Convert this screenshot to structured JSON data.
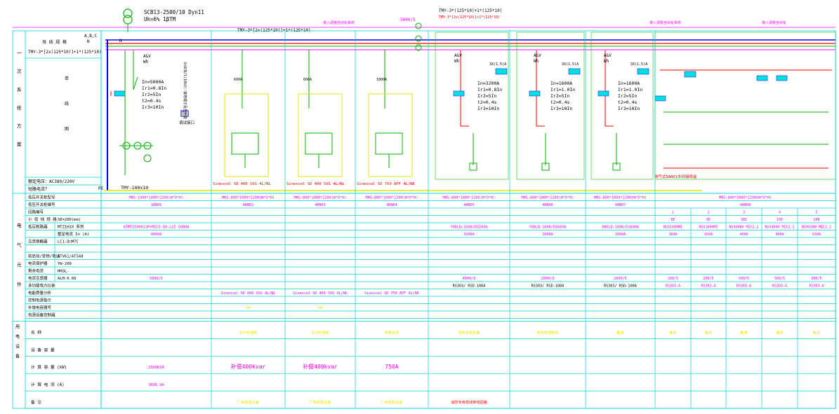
{
  "transformer": {
    "model": "SCB13-2500/10 Dyn11",
    "uk": "Uk=6% 1βTM",
    "main_busbar": "TMY-3*[2x(125*10)]+1*(125*10)",
    "mid_busbar": "TMY-3*[2x(125*10)]+1*(125*10)",
    "pe_bar": "TMY-100x10",
    "top_right_label": "5000/5",
    "top_mid_label": "TMY-3*[2x(125*10)]+1*(125*10)",
    "top_cut_label": "TMY-3*(125*10)+1*(125*10)"
  },
  "bus_phase_labels": {
    "abc": "A,B,C",
    "n": "N",
    "pe": "PE",
    "n2": "N"
  },
  "header_cells": {
    "r1": "一",
    "busbar_label": "母 线 规 格",
    "main_scheme": [
      "次",
      "系",
      "统",
      "方",
      "案"
    ],
    "single_line": [
      "单",
      "线",
      "图"
    ],
    "rated_voltage": "额定电压：AC380/220V",
    "short_circuit": "短路电流？"
  },
  "magenta_notes": {
    "top_left": "接入调度自动化系统",
    "top_right_a": "接入调度自动化系统",
    "top_right_b": "接入调度自动化"
  },
  "trip_settings": {
    "incoming": [
      "In=5000A",
      "Ir1=0.8In",
      "Ir2=5In",
      "t2=0.4s",
      "Ir3=10In"
    ],
    "f5": [
      "In=3200A",
      "Ir1=0.8In",
      "Ir2=5In",
      "t2=0.4s",
      "Ir3=10In"
    ],
    "f6": [
      "In=1600A",
      "Ir1=1.0In",
      "Ir2=5In",
      "t2=0.4s",
      "Ir3=10In"
    ],
    "f7": [
      "In=1600A",
      "Ir1=1.0In",
      "Ir2=5In",
      "t2=0.4s",
      "Ir3=10In"
    ]
  },
  "meters": {
    "label1": "A&V",
    "label2": "Wh",
    "box_label": "3X(1.5)A"
  },
  "schematic_misc": {
    "test_terminal": "T1",
    "test_label": "调试接口",
    "vertical_note": "3×UCN/1(10kV)-接地端子及控制变",
    "rated_a_600a": "600A",
    "rated_a_1000a": "1000A",
    "last_note": "电气式5AN01中间接线盒"
  },
  "compensators": [
    "Sinexcel SD 400 SVG 4L/NL",
    "Sinexcel SD 400 SVG 4L/NL",
    "Sinexcel SD 750 APF 4L/NE"
  ],
  "row_labels": [
    "低压开关柜型号",
    "低压开关柜编号",
    "回路编号",
    "小 母 线 规 格",
    "低压断路器",
    "",
    "交流接触器",
    "",
    "软启动/变频/电话",
    "电流保护器",
    "剩余电流",
    "电流互感器",
    "多功能电力仪表",
    "电能质量分析",
    "控制电源指示",
    "补偿电容器号",
    "电源设备控制器"
  ],
  "row_sub_labels": [
    "",
    "",
    "",
    "SE=200(mm)",
    "MTZ1H3X  系列",
    "整定电流 In (A)",
    "LC1-D□M7C",
    "",
    "ATV61/ATS48",
    "YW-200",
    "HRGL-",
    "ALH-0.66",
    "",
    "",
    "",
    "",
    ""
  ],
  "category_labels": [
    "电",
    "气",
    "元",
    "件"
  ],
  "bottom_side_labels": [
    "用",
    "电",
    "设",
    "备"
  ],
  "bottom_row_labels": [
    "名    称",
    "设 备 容 量",
    "计 算 容 量  (kW)",
    "计 算 电 流  (A)",
    "备   注"
  ],
  "cabinets": [
    {
      "id": "1AN01",
      "model": "MNS-1000*1000*2200(W*D*H)",
      "breaker": "ATMT2500H13P+MIC5.0X-LSI 5000A",
      "setting": "4000A",
      "ct": "5000/5",
      "meter": "",
      "quality": "",
      "ctrl": "",
      "name": "",
      "cap": "2500KVA",
      "current": "3608.9A",
      "remark": ""
    },
    {
      "id": "4AN02",
      "model": "MNS-800*1000*2200(W*D*H)",
      "breaker": "",
      "setting": "",
      "ct": "",
      "meter": "",
      "quality": "Sinexcel SD 400 SVG 4L/NL",
      "ctrl": "6#",
      "name": "无功补偿柜",
      "cap": "补偿400kvar",
      "current": "",
      "remark": "厂家成套设备"
    },
    {
      "id": "4AN03",
      "model": "MNS-800*1000*2200(W*D*H)",
      "breaker": "",
      "setting": "",
      "ct": "",
      "meter": "",
      "quality": "Sinexcel SD 400 SVG 4L/NL",
      "ctrl": "6#",
      "name": "无功补偿柜",
      "cap": "补偿400kvar",
      "current": "",
      "remark": "厂家成套设备"
    },
    {
      "id": "4AN04",
      "model": "MNS-800*1000*2200(W*D*H)",
      "breaker": "",
      "setting": "",
      "ct": "",
      "meter": "",
      "quality": "Sinexcel SD 750 APF 4L/NE",
      "ctrl": "",
      "name": "有源滤波",
      "cap": "750A",
      "current": "",
      "remark": "厂家成套设备"
    },
    {
      "id": "4AN05",
      "model": "MNS-800*1000*2200(W*D*H)",
      "breaker": "YDDLD-3200/D3200A",
      "setting": "3200A",
      "ct": "4000/5",
      "meter": "RS303/ RSD-100A",
      "quality": "",
      "ctrl": "",
      "name": "消防用电设备",
      "cap": "",
      "current": "",
      "remark": "消防专用母线穿线回路"
    },
    {
      "id": "4AN06",
      "model": "MNS-800*1000*2200(W*D*H)",
      "breaker": "YDDLD-1600/D1600A",
      "setting": "1600A",
      "ct": "2000/5",
      "meter": "RS303/ RSD-100A",
      "quality": "",
      "ctrl": "",
      "name": "发电机组配电",
      "cap": "",
      "current": "",
      "remark": ""
    },
    {
      "id": "4AN07",
      "model": "MNS-800*1000*2200(W*D*H)",
      "breaker": "YDDLD-1600/D1600A",
      "setting": "1600A",
      "ct": "2000/5",
      "meter": "RS303/ RSD-100A",
      "quality": "",
      "ctrl": "",
      "name": "备用",
      "cap": "",
      "current": "",
      "remark": ""
    }
  ],
  "last_cabinet": {
    "id": "4AN08",
    "model": "MNS-800*1000*2200(W*D*H)",
    "feeders": [
      {
        "no": "1",
        "se": "8E",
        "breaker": "NSX160HMI",
        "setting": "160A",
        "ct": "200/5",
        "meter": "RS303-A",
        "name": "备用"
      },
      {
        "no": "2",
        "se": "8E",
        "breaker": "NSX160HMI",
        "setting": "160A",
        "ct": "200/5",
        "meter": "RS303-A",
        "name": "备用"
      },
      {
        "no": "3",
        "se": "16E",
        "breaker": "NSX400H MIC2.2",
        "setting": "400A",
        "ct": "500/5",
        "meter": "RS303-A",
        "name": "备用"
      },
      {
        "no": "4",
        "se": "16E",
        "breaker": "NSX400H MIC2.2",
        "setting": "400A",
        "ct": "500/5",
        "meter": "RS303-A",
        "name": "备用"
      },
      {
        "no": "5",
        "se": "24E",
        "breaker": "NSX630H MIC2.2",
        "setting": "630A",
        "ct": "600/5",
        "meter": "RS303-A",
        "name": "备用"
      }
    ]
  }
}
